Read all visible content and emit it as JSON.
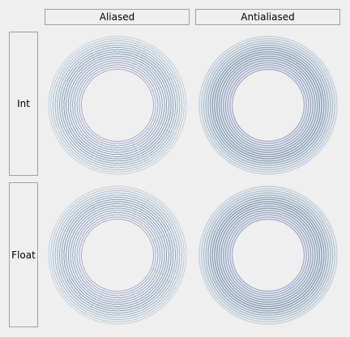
{
  "columns": [
    {
      "label": "Aliased"
    },
    {
      "label": "Antialiased"
    }
  ],
  "rows": [
    {
      "label": "Int"
    },
    {
      "label": "Float"
    }
  ],
  "colors": {
    "background": "#efefef",
    "header_border": "#a0a0a0",
    "ring_outer": "#c4d1dc",
    "ring_mid": "#7d9ab5",
    "ring_inner": "#a8aecf"
  }
}
